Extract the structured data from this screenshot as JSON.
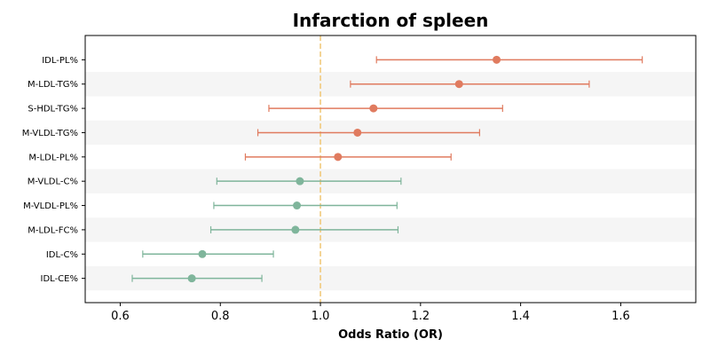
{
  "chart_data": {
    "type": "forest",
    "title": "Infarction of spleen",
    "xlabel": "Odds Ratio (OR)",
    "ylabel": "",
    "xlim": [
      0.53,
      1.75
    ],
    "xticks": [
      0.6,
      0.8,
      1.0,
      1.2,
      1.4,
      1.6
    ],
    "xtick_labels": [
      "0.6",
      "0.8",
      "1.0",
      "1.2",
      "1.4",
      "1.6"
    ],
    "reference_line": 1.0,
    "reference_line_color": "#f0c674",
    "row_band_color": "#f5f5f5",
    "colors": {
      "risk": "#e07b5f",
      "protective": "#7fb59b"
    },
    "grid": false,
    "rows": [
      {
        "label": "IDL-PL%",
        "or": 1.352,
        "lower": 1.112,
        "upper": 1.643,
        "group": "risk"
      },
      {
        "label": "M-LDL-TG%",
        "or": 1.277,
        "lower": 1.06,
        "upper": 1.537,
        "group": "risk"
      },
      {
        "label": "S-HDL-TG%",
        "or": 1.106,
        "lower": 0.897,
        "upper": 1.364,
        "group": "risk"
      },
      {
        "label": "M-VLDL-TG%",
        "or": 1.074,
        "lower": 0.875,
        "upper": 1.318,
        "group": "risk"
      },
      {
        "label": "M-LDL-PL%",
        "or": 1.035,
        "lower": 0.85,
        "upper": 1.261,
        "group": "risk"
      },
      {
        "label": "M-VLDL-C%",
        "or": 0.959,
        "lower": 0.793,
        "upper": 1.161,
        "group": "protective"
      },
      {
        "label": "M-VLDL-PL%",
        "or": 0.953,
        "lower": 0.787,
        "upper": 1.153,
        "group": "protective"
      },
      {
        "label": "M-LDL-FC%",
        "or": 0.95,
        "lower": 0.781,
        "upper": 1.155,
        "group": "protective"
      },
      {
        "label": "IDL-C%",
        "or": 0.764,
        "lower": 0.645,
        "upper": 0.906,
        "group": "protective"
      },
      {
        "label": "IDL-CE%",
        "or": 0.743,
        "lower": 0.624,
        "upper": 0.883,
        "group": "protective"
      }
    ]
  }
}
